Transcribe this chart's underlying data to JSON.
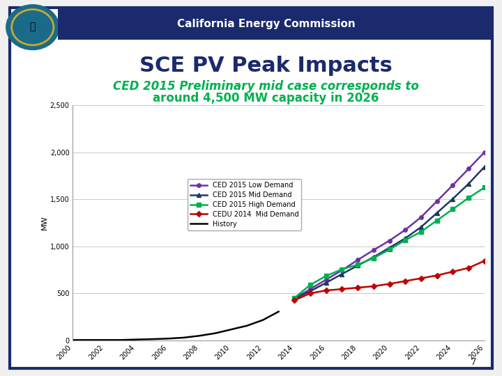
{
  "title": "SCE PV Peak Impacts",
  "subtitle_line1_italic": "CED 2015 Preliminary",
  "subtitle_line1_rest": " mid case corresponds to",
  "subtitle_line2": "around 4,500 MW capacity in 2026",
  "header_text": "California Energy Commission",
  "ylabel": "MW",
  "page_number": "7",
  "background_color": "#f0f0f0",
  "slide_bg": "#ffffff",
  "header_bg": "#1a2a6c",
  "border_color": "#1a2a6c",
  "plot_bg": "#ffffff",
  "grid_color": "#c0c0c0",
  "xlim": [
    2000,
    2026
  ],
  "ylim": [
    0,
    2500
  ],
  "yticks": [
    0,
    500,
    1000,
    1500,
    2000,
    2500
  ],
  "xticks": [
    2000,
    2002,
    2004,
    2006,
    2008,
    2010,
    2012,
    2014,
    2016,
    2018,
    2020,
    2022,
    2024,
    2026
  ],
  "history_x": [
    2000,
    2001,
    2002,
    2003,
    2004,
    2005,
    2006,
    2007,
    2008,
    2009,
    2010,
    2011,
    2012,
    2013
  ],
  "history_y": [
    3,
    3,
    3,
    3,
    8,
    12,
    18,
    28,
    48,
    75,
    115,
    155,
    215,
    305
  ],
  "low_x": [
    2014,
    2015,
    2016,
    2017,
    2018,
    2019,
    2020,
    2021,
    2022,
    2023,
    2024,
    2025,
    2026
  ],
  "low_y": [
    443,
    545,
    645,
    745,
    855,
    960,
    1060,
    1175,
    1310,
    1480,
    1650,
    1825,
    2000
  ],
  "mid_x": [
    2014,
    2015,
    2016,
    2017,
    2018,
    2019,
    2020,
    2021,
    2022,
    2023,
    2024,
    2025,
    2026
  ],
  "mid_y": [
    443,
    522,
    612,
    705,
    795,
    885,
    985,
    1085,
    1205,
    1355,
    1505,
    1665,
    1845
  ],
  "high_x": [
    2014,
    2015,
    2016,
    2017,
    2018,
    2019,
    2020,
    2021,
    2022,
    2023,
    2024,
    2025,
    2026
  ],
  "high_y": [
    450,
    590,
    685,
    755,
    805,
    875,
    965,
    1065,
    1155,
    1275,
    1395,
    1515,
    1625
  ],
  "cedu_x": [
    2014,
    2015,
    2016,
    2017,
    2018,
    2019,
    2020,
    2021,
    2022,
    2023,
    2024,
    2025,
    2026
  ],
  "cedu_y": [
    425,
    500,
    530,
    545,
    560,
    575,
    600,
    630,
    660,
    690,
    730,
    770,
    845
  ],
  "colors": {
    "low": "#7030a0",
    "mid": "#1f3864",
    "high": "#00b050",
    "cedu": "#c00000",
    "history": "#000000"
  },
  "legend_labels": [
    "CED 2015 Low Demand",
    "CED 2015 Mid Demand",
    "CED 2015 High Demand",
    "CEDU 2014  Mid Demand",
    "History"
  ],
  "title_color": "#1a2a6c",
  "subtitle_color": "#00b050"
}
